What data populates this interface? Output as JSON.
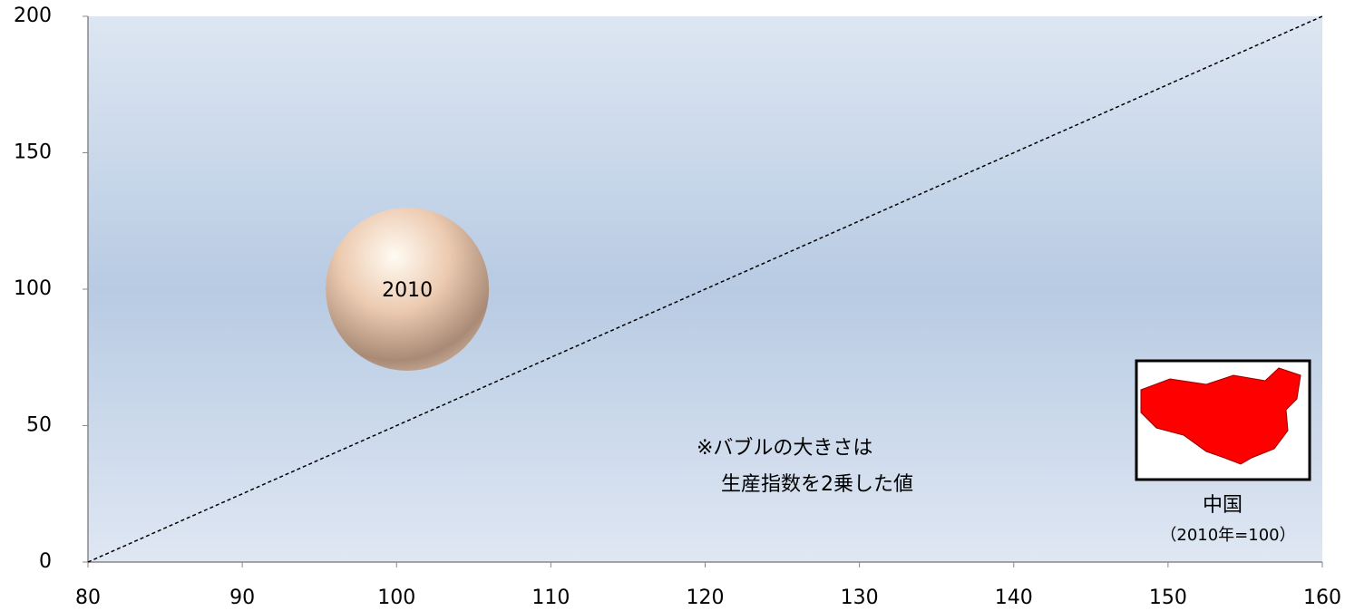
{
  "chart_data": {
    "type": "bubble",
    "series": [
      {
        "name": "2010",
        "color": "#e8c4a8",
        "x": [
          100.7
        ],
        "y": [
          100
        ],
        "size": [
          10000
        ]
      }
    ],
    "reference_line": {
      "x": [
        80,
        160
      ],
      "y": [
        0,
        200
      ]
    },
    "xlim": [
      80,
      160
    ],
    "xticks": [
      80,
      90,
      100,
      110,
      120,
      130,
      140,
      150,
      160
    ],
    "ylim": [
      0,
      200
    ],
    "yticks": [
      0,
      50,
      100,
      150,
      200
    ],
    "annotation": [
      "※バブルの大きさは",
      "生産指数を2乗した値"
    ],
    "map_caption": [
      "中国",
      "（2010年=100）"
    ]
  }
}
